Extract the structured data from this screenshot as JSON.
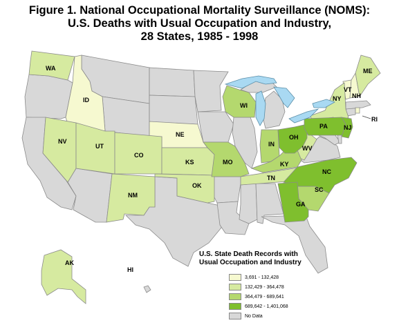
{
  "title": {
    "line1": "Figure 1. National Occupational Mortality Surveillance (NOMS):",
    "line2": "U.S. Deaths with Usual Occupation and Industry,",
    "line3": "28 States, 1985 - 1998"
  },
  "colors": {
    "class1": "#f6f9d0",
    "class2": "#d6eaa0",
    "class3": "#b4d86e",
    "class4": "#7fbf2e",
    "no_data": "#d8d8d8",
    "water": "#a9d9f2"
  },
  "legend": {
    "title_line1": "U.S. State Death Records with",
    "title_line2": "Usual Occupation and Industry",
    "items": [
      {
        "label": "3,691 - 132,428",
        "color": "#f6f9d0"
      },
      {
        "label": "132,429 - 364,478",
        "color": "#d6eaa0"
      },
      {
        "label": "364,479 - 689,641",
        "color": "#b4d86e"
      },
      {
        "label": "689,642 - 1,401,068",
        "color": "#7fbf2e"
      },
      {
        "label": "No Data",
        "color": "#d8d8d8"
      }
    ]
  },
  "states": {
    "WA": "WA",
    "ID": "ID",
    "NV": "NV",
    "UT": "UT",
    "CO": "CO",
    "NM": "NM",
    "NE": "NE",
    "KS": "KS",
    "OK": "OK",
    "MO": "MO",
    "WI": "WI",
    "IN": "IN",
    "OH": "OH",
    "KY": "KY",
    "TN": "TN",
    "WV": "WV",
    "PA": "PA",
    "NJ": "NJ",
    "NY": "NY",
    "VT": "VT",
    "NH": "NH",
    "ME": "ME",
    "RI": "RI",
    "NC": "NC",
    "SC": "SC",
    "GA": "GA",
    "AK": "AK",
    "HI": "HI"
  }
}
